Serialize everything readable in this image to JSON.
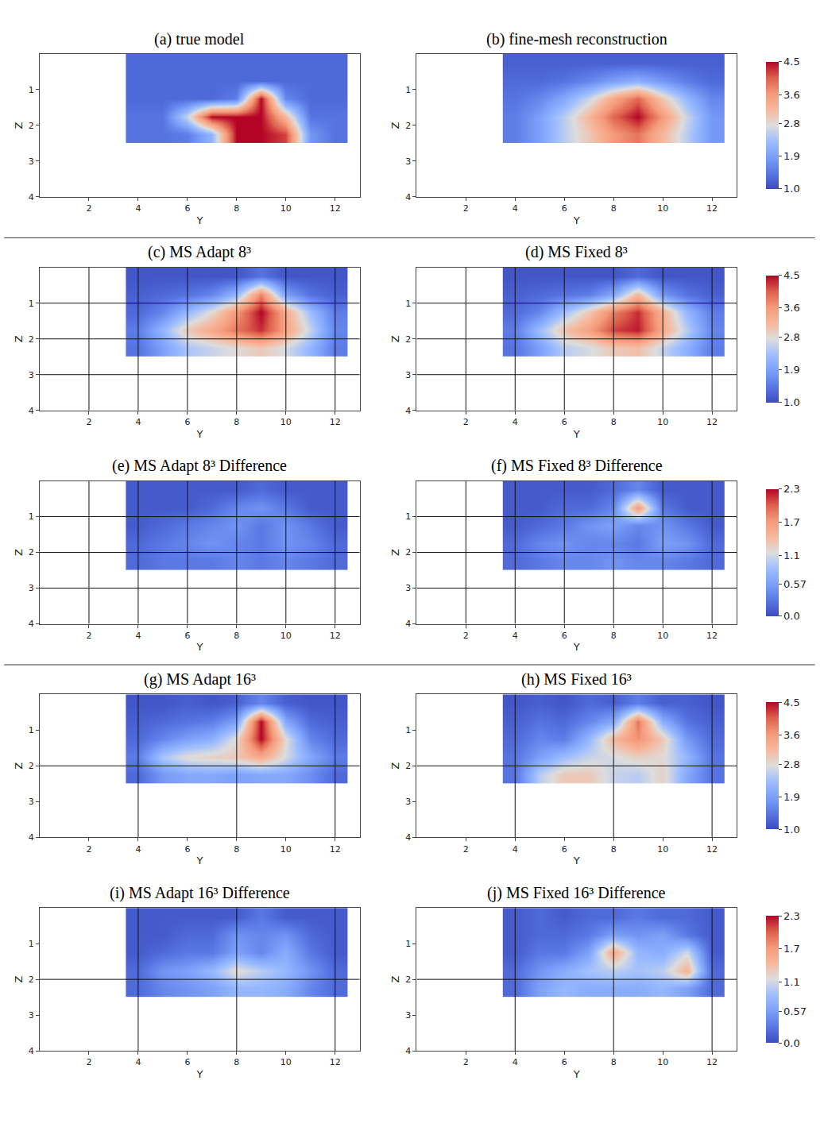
{
  "chart_data": [
    {
      "type": "heatmap",
      "title": "(a) true model",
      "xlabel": "Y",
      "ylabel": "Z",
      "xlim": [
        0,
        13
      ],
      "ylim": [
        4,
        0
      ],
      "xticks": [
        2,
        4,
        6,
        8,
        10,
        12
      ],
      "yticks": [
        1,
        2,
        3,
        4
      ],
      "x": [
        4,
        5,
        6,
        7,
        8,
        9,
        10,
        11,
        12
      ],
      "y": [
        0.25,
        0.75,
        1.25,
        1.75,
        2.25
      ],
      "zlim": [
        1,
        4.5
      ],
      "z": [
        [
          1.3,
          1.3,
          1.3,
          1.3,
          1.3,
          1.3,
          1.3,
          1.3,
          1.3
        ],
        [
          1.3,
          1.3,
          1.3,
          1.3,
          1.3,
          1.3,
          1.3,
          1.3,
          1.3
        ],
        [
          1.3,
          1.3,
          1.3,
          1.3,
          1.5,
          4.5,
          1.6,
          1.3,
          1.3
        ],
        [
          1.4,
          1.4,
          2.6,
          4.5,
          4.5,
          4.5,
          3.2,
          1.4,
          1.4
        ],
        [
          1.4,
          1.4,
          1.5,
          2.2,
          4.5,
          4.5,
          4.2,
          1.8,
          1.4
        ]
      ]
    },
    {
      "type": "heatmap",
      "title": "(b) fine-mesh reconstruction",
      "xlabel": "Y",
      "ylabel": "Z",
      "xlim": [
        0,
        13
      ],
      "ylim": [
        4,
        0
      ],
      "xticks": [
        2,
        4,
        6,
        8,
        10,
        12
      ],
      "yticks": [
        1,
        2,
        3,
        4
      ],
      "x": [
        4,
        5,
        6,
        7,
        8,
        9,
        10,
        11,
        12
      ],
      "y": [
        0.25,
        0.75,
        1.25,
        1.75,
        2.25
      ],
      "zlim": [
        1,
        4.5
      ],
      "colorbar_ticks": [
        {
          "value": 1,
          "label": "1.0"
        },
        1.9,
        2.8,
        3.6,
        4.5
      ],
      "z": [
        [
          1.2,
          1.2,
          1.2,
          1.2,
          1.2,
          1.2,
          1.2,
          1.2,
          1.2
        ],
        [
          1.3,
          1.3,
          1.4,
          1.6,
          1.9,
          2.1,
          1.8,
          1.5,
          1.3
        ],
        [
          1.4,
          1.6,
          2.0,
          2.6,
          3.4,
          4.0,
          3.0,
          2.2,
          1.6
        ],
        [
          1.5,
          1.9,
          2.5,
          3.2,
          4.0,
          4.5,
          3.6,
          2.6,
          1.8
        ],
        [
          1.5,
          1.9,
          2.5,
          3.0,
          3.6,
          3.9,
          3.2,
          2.5,
          1.8
        ]
      ]
    },
    {
      "type": "heatmap",
      "title": "(c) MS Adapt 8³",
      "xlabel": "Y",
      "ylabel": "Z",
      "xlim": [
        0,
        13
      ],
      "ylim": [
        4,
        0
      ],
      "xticks": [
        2,
        4,
        6,
        8,
        10,
        12
      ],
      "yticks": [
        1,
        2,
        3,
        4
      ],
      "x": [
        4,
        5,
        6,
        7,
        8,
        9,
        10,
        11,
        12
      ],
      "y": [
        0.25,
        0.75,
        1.25,
        1.75,
        2.25
      ],
      "zlim": [
        1,
        4.5
      ],
      "coarse_grid": {
        "y": [
          2,
          4,
          6,
          8,
          10,
          12
        ],
        "z": [
          1,
          2,
          3
        ]
      },
      "z": [
        [
          1.1,
          1.1,
          1.1,
          1.1,
          1.1,
          1.4,
          1.1,
          1.1,
          1.1
        ],
        [
          1.2,
          1.3,
          1.4,
          1.6,
          2.2,
          3.8,
          1.9,
          1.4,
          1.2
        ],
        [
          1.3,
          1.6,
          2.2,
          2.8,
          3.6,
          4.5,
          3.4,
          2.3,
          1.5
        ],
        [
          1.5,
          2.2,
          3.0,
          3.4,
          3.9,
          4.3,
          3.5,
          2.6,
          1.6
        ],
        [
          1.4,
          1.9,
          2.4,
          2.6,
          2.8,
          3.0,
          2.7,
          2.2,
          1.5
        ]
      ]
    },
    {
      "type": "heatmap",
      "title": "(d) MS Fixed 8³",
      "xlabel": "Y",
      "ylabel": "Z",
      "xlim": [
        0,
        13
      ],
      "ylim": [
        4,
        0
      ],
      "xticks": [
        2,
        4,
        6,
        8,
        10,
        12
      ],
      "yticks": [
        1,
        2,
        3,
        4
      ],
      "x": [
        4,
        5,
        6,
        7,
        8,
        9,
        10,
        11,
        12
      ],
      "y": [
        0.25,
        0.75,
        1.25,
        1.75,
        2.25
      ],
      "zlim": [
        1,
        4.5
      ],
      "colorbar_ticks": [
        {
          "value": 1,
          "label": "1.0"
        },
        1.9,
        2.8,
        3.6,
        4.5
      ],
      "coarse_grid": {
        "y": [
          2,
          4,
          6,
          8,
          10,
          12
        ],
        "z": [
          1,
          2,
          3
        ]
      },
      "z": [
        [
          1.1,
          1.1,
          1.1,
          1.1,
          1.1,
          1.3,
          1.1,
          1.1,
          1.1
        ],
        [
          1.2,
          1.3,
          1.4,
          1.5,
          2.0,
          3.2,
          1.8,
          1.4,
          1.2
        ],
        [
          1.3,
          1.6,
          2.3,
          3.0,
          3.8,
          4.3,
          3.3,
          2.2,
          1.5
        ],
        [
          1.5,
          2.3,
          3.1,
          3.5,
          4.2,
          4.4,
          3.4,
          2.5,
          1.6
        ],
        [
          1.4,
          1.9,
          2.5,
          2.7,
          3.0,
          3.1,
          2.6,
          2.1,
          1.5
        ]
      ]
    },
    {
      "type": "heatmap",
      "title": "(e) MS Adapt 8³ Difference",
      "xlabel": "Y",
      "ylabel": "Z",
      "xlim": [
        0,
        13
      ],
      "ylim": [
        4,
        0
      ],
      "xticks": [
        2,
        4,
        6,
        8,
        10,
        12
      ],
      "yticks": [
        1,
        2,
        3,
        4
      ],
      "x": [
        4,
        5,
        6,
        7,
        8,
        9,
        10,
        11,
        12
      ],
      "y": [
        0.25,
        0.75,
        1.25,
        1.75,
        2.25
      ],
      "zlim": [
        0,
        2.3
      ],
      "coarse_grid": {
        "y": [
          2,
          4,
          6,
          8,
          10,
          12
        ],
        "z": [
          1,
          2,
          3
        ]
      },
      "z": [
        [
          0.1,
          0.1,
          0.1,
          0.1,
          0.1,
          0.2,
          0.1,
          0.1,
          0.1
        ],
        [
          0.1,
          0.1,
          0.1,
          0.2,
          0.4,
          0.5,
          0.3,
          0.1,
          0.1
        ],
        [
          0.1,
          0.2,
          0.3,
          0.4,
          0.5,
          0.3,
          0.5,
          0.3,
          0.1
        ],
        [
          0.2,
          0.3,
          0.4,
          0.5,
          0.4,
          0.3,
          0.5,
          0.4,
          0.2
        ],
        [
          0.2,
          0.3,
          0.3,
          0.3,
          0.4,
          0.3,
          0.4,
          0.3,
          0.2
        ]
      ]
    },
    {
      "type": "heatmap",
      "title": "(f) MS Fixed 8³ Difference",
      "xlabel": "Y",
      "ylabel": "Z",
      "xlim": [
        0,
        13
      ],
      "ylim": [
        4,
        0
      ],
      "xticks": [
        2,
        4,
        6,
        8,
        10,
        12
      ],
      "yticks": [
        1,
        2,
        3,
        4
      ],
      "x": [
        4,
        5,
        6,
        7,
        8,
        9,
        10,
        11,
        12
      ],
      "y": [
        0.25,
        0.75,
        1.25,
        1.75,
        2.25
      ],
      "zlim": [
        0,
        2.3
      ],
      "colorbar_ticks": [
        {
          "value": 0,
          "label": "0.0"
        },
        0.57,
        1.1,
        1.7,
        2.3
      ],
      "coarse_grid": {
        "y": [
          2,
          4,
          6,
          8,
          10,
          12
        ],
        "z": [
          1,
          2,
          3
        ]
      },
      "z": [
        [
          0.1,
          0.1,
          0.1,
          0.1,
          0.2,
          0.4,
          0.1,
          0.1,
          0.1
        ],
        [
          0.1,
          0.1,
          0.2,
          0.2,
          0.4,
          1.7,
          0.3,
          0.1,
          0.1
        ],
        [
          0.1,
          0.2,
          0.3,
          0.5,
          0.6,
          0.4,
          0.5,
          0.3,
          0.1
        ],
        [
          0.2,
          0.4,
          0.5,
          0.4,
          0.4,
          0.3,
          0.6,
          0.5,
          0.2
        ],
        [
          0.2,
          0.3,
          0.4,
          0.4,
          0.5,
          0.4,
          0.4,
          0.3,
          0.2
        ]
      ]
    },
    {
      "type": "heatmap",
      "title": "(g) MS Adapt 16³",
      "xlabel": "Y",
      "ylabel": "Z",
      "xlim": [
        0,
        13
      ],
      "ylim": [
        4,
        0
      ],
      "xticks": [
        2,
        4,
        6,
        8,
        10,
        12
      ],
      "yticks": [
        1,
        2,
        3,
        4
      ],
      "x": [
        4,
        5,
        6,
        7,
        8,
        9,
        10,
        11,
        12
      ],
      "y": [
        0.25,
        0.75,
        1.25,
        1.75,
        2.25
      ],
      "zlim": [
        1,
        4.5
      ],
      "coarse_grid": {
        "y": [
          4,
          8,
          12
        ],
        "z": [
          2
        ]
      },
      "z": [
        [
          1.1,
          1.1,
          1.2,
          1.1,
          1.2,
          1.6,
          1.2,
          1.1,
          1.1
        ],
        [
          1.2,
          1.3,
          1.4,
          1.5,
          1.9,
          4.5,
          2.0,
          1.3,
          1.2
        ],
        [
          1.3,
          1.6,
          1.9,
          2.1,
          2.8,
          4.5,
          2.8,
          1.6,
          1.3
        ],
        [
          1.5,
          2.4,
          2.8,
          2.9,
          3.0,
          3.4,
          2.7,
          2.0,
          1.5
        ],
        [
          1.3,
          1.8,
          2.0,
          2.0,
          1.9,
          2.0,
          2.0,
          1.7,
          1.3
        ]
      ]
    },
    {
      "type": "heatmap",
      "title": "(h) MS Fixed 16³",
      "xlabel": "Y",
      "ylabel": "Z",
      "xlim": [
        0,
        13
      ],
      "ylim": [
        4,
        0
      ],
      "xticks": [
        2,
        4,
        6,
        8,
        10,
        12
      ],
      "yticks": [
        1,
        2,
        3,
        4
      ],
      "x": [
        4,
        5,
        6,
        7,
        8,
        9,
        10,
        11,
        12
      ],
      "y": [
        0.25,
        0.75,
        1.25,
        1.75,
        2.25
      ],
      "zlim": [
        1,
        4.5
      ],
      "colorbar_ticks": [
        {
          "value": 1,
          "label": "1.0"
        },
        1.9,
        2.8,
        3.6,
        4.5
      ],
      "coarse_grid": {
        "y": [
          4,
          8,
          12
        ],
        "z": [
          2
        ]
      },
      "z": [
        [
          1.1,
          1.2,
          1.1,
          1.3,
          1.2,
          1.5,
          1.2,
          1.2,
          1.1
        ],
        [
          1.2,
          1.4,
          1.3,
          1.6,
          2.0,
          3.9,
          2.1,
          1.4,
          1.2
        ],
        [
          1.3,
          1.6,
          1.5,
          2.2,
          3.2,
          3.7,
          3.0,
          1.8,
          1.3
        ],
        [
          1.4,
          1.9,
          2.3,
          2.6,
          2.7,
          2.9,
          2.8,
          2.2,
          1.4
        ],
        [
          1.4,
          2.5,
          3.0,
          3.0,
          2.6,
          2.5,
          2.9,
          2.0,
          1.4
        ]
      ]
    },
    {
      "type": "heatmap",
      "title": "(i) MS Adapt 16³ Difference",
      "xlabel": "Y",
      "ylabel": "Z",
      "xlim": [
        0,
        13
      ],
      "ylim": [
        4,
        0
      ],
      "xticks": [
        2,
        4,
        6,
        8,
        10,
        12
      ],
      "yticks": [
        1,
        2,
        3,
        4
      ],
      "x": [
        4,
        5,
        6,
        7,
        8,
        9,
        10,
        11,
        12
      ],
      "y": [
        0.25,
        0.75,
        1.25,
        1.75,
        2.25
      ],
      "zlim": [
        0,
        2.3
      ],
      "coarse_grid": {
        "y": [
          4,
          8,
          12
        ],
        "z": [
          2
        ]
      },
      "z": [
        [
          0.1,
          0.1,
          0.1,
          0.1,
          0.1,
          0.3,
          0.1,
          0.1,
          0.1
        ],
        [
          0.1,
          0.1,
          0.2,
          0.2,
          0.5,
          0.4,
          0.5,
          0.2,
          0.1
        ],
        [
          0.1,
          0.2,
          0.3,
          0.3,
          0.6,
          0.4,
          0.7,
          0.3,
          0.1
        ],
        [
          0.2,
          0.5,
          0.6,
          0.8,
          1.2,
          1.0,
          0.8,
          0.5,
          0.2
        ],
        [
          0.2,
          0.4,
          0.5,
          0.6,
          0.8,
          0.8,
          0.7,
          0.4,
          0.2
        ]
      ]
    },
    {
      "type": "heatmap",
      "title": "(j) MS Fixed 16³ Difference",
      "xlabel": "Y",
      "ylabel": "Z",
      "xlim": [
        0,
        13
      ],
      "ylim": [
        4,
        0
      ],
      "xticks": [
        2,
        4,
        6,
        8,
        10,
        12
      ],
      "yticks": [
        1,
        2,
        3,
        4
      ],
      "x": [
        4,
        5,
        6,
        7,
        8,
        9,
        10,
        11,
        12
      ],
      "y": [
        0.25,
        0.75,
        1.25,
        1.75,
        2.25
      ],
      "zlim": [
        0,
        2.3
      ],
      "colorbar_ticks": [
        {
          "value": 0,
          "label": "0.0"
        },
        0.57,
        1.1,
        1.7,
        2.3
      ],
      "coarse_grid": {
        "y": [
          4,
          8,
          12
        ],
        "z": [
          2
        ]
      },
      "z": [
        [
          0.1,
          0.2,
          0.1,
          0.2,
          0.2,
          0.3,
          0.2,
          0.2,
          0.1
        ],
        [
          0.1,
          0.2,
          0.2,
          0.3,
          0.6,
          0.5,
          0.6,
          0.3,
          0.1
        ],
        [
          0.1,
          0.3,
          0.3,
          0.6,
          1.6,
          0.8,
          0.7,
          1.1,
          0.1
        ],
        [
          0.2,
          0.5,
          0.7,
          0.9,
          1.0,
          0.9,
          1.0,
          1.5,
          0.2
        ],
        [
          0.2,
          0.6,
          0.8,
          0.7,
          0.7,
          0.7,
          0.8,
          0.6,
          0.2
        ]
      ]
    }
  ]
}
